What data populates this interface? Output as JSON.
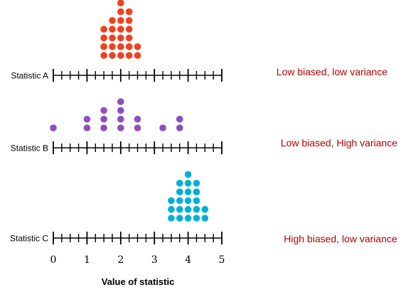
{
  "colors": {
    "axis": "#000000",
    "annotation": "#b30000"
  },
  "chart_data": {
    "type": "scatter",
    "title": "",
    "xlabel": "Value of statistic",
    "ylabel": "",
    "xlim": [
      0,
      5
    ],
    "x_ticks": [
      "0",
      "1",
      "2",
      "3",
      "4",
      "5"
    ],
    "series": [
      {
        "name": "Statistic A",
        "color": "#f2401d",
        "annotation": "Low biased, low variance",
        "columns": [
          {
            "x": 1.5,
            "count": 4
          },
          {
            "x": 1.75,
            "count": 5
          },
          {
            "x": 2.0,
            "count": 7
          },
          {
            "x": 2.25,
            "count": 6
          },
          {
            "x": 2.5,
            "count": 2
          }
        ]
      },
      {
        "name": "Statistic B",
        "color": "#8e4fbd",
        "annotation": "Low biased, High variance",
        "columns": [
          {
            "x": 0.0,
            "count": 1
          },
          {
            "x": 1.0,
            "count": 2
          },
          {
            "x": 1.5,
            "count": 3
          },
          {
            "x": 2.0,
            "count": 4
          },
          {
            "x": 2.5,
            "count": 2
          },
          {
            "x": 3.25,
            "count": 1
          },
          {
            "x": 3.75,
            "count": 2
          }
        ]
      },
      {
        "name": "Statistic C",
        "color": "#00b0d6",
        "annotation": "High biased, low variance",
        "columns": [
          {
            "x": 3.5,
            "count": 3
          },
          {
            "x": 3.75,
            "count": 5
          },
          {
            "x": 4.0,
            "count": 6
          },
          {
            "x": 4.25,
            "count": 5
          },
          {
            "x": 4.5,
            "count": 2
          }
        ]
      }
    ]
  }
}
